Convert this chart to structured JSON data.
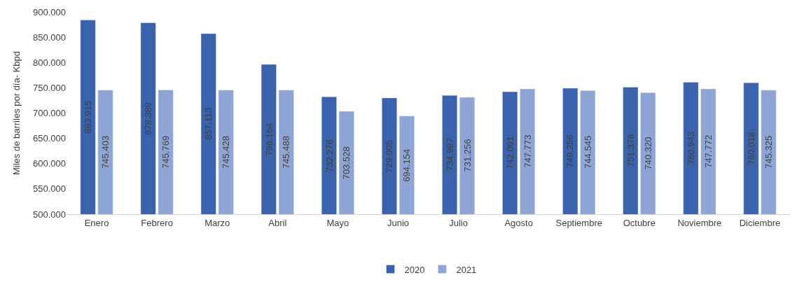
{
  "chart_data": {
    "type": "bar",
    "ylabel": "Miles de barriles por día- Kbpd",
    "categories": [
      "Enero",
      "Febrero",
      "Marzo",
      "Abril",
      "Mayo",
      "Junio",
      "Julio",
      "Agosto",
      "Septiembre",
      "Octubre",
      "Noviembre",
      "Diciembre"
    ],
    "series": [
      {
        "name": "2020",
        "color": "#3a62ad",
        "values": [
          883915,
          878389,
          857113,
          796164,
          732276,
          729905,
          734987,
          742091,
          749256,
          751376,
          760943,
          760018
        ],
        "value_labels": [
          "883.915",
          "878.389",
          "857.113",
          "796.164",
          "732.276",
          "729.905",
          "734.987",
          "742.091",
          "749.256",
          "751.376",
          "760.943",
          "760.018"
        ]
      },
      {
        "name": "2021",
        "color": "#8fa5d6",
        "values": [
          745403,
          745769,
          745428,
          745488,
          703528,
          694154,
          731256,
          747773,
          744545,
          740320,
          747772,
          745325
        ],
        "value_labels": [
          "745.403",
          "745.769",
          "745.428",
          "745.488",
          "703.528",
          "694.154",
          "731.256",
          "747.773",
          "744.545",
          "740.320",
          "747.772",
          "745.325"
        ]
      }
    ],
    "ylim": [
      500000,
      900000
    ],
    "yticks": [
      {
        "value": 500000,
        "label": "500.000"
      },
      {
        "value": 550000,
        "label": "550.000"
      },
      {
        "value": 600000,
        "label": "600.000"
      },
      {
        "value": 650000,
        "label": "650.000"
      },
      {
        "value": 700000,
        "label": "700.000"
      },
      {
        "value": 750000,
        "label": "750.000"
      },
      {
        "value": 800000,
        "label": "800.000"
      },
      {
        "value": 850000,
        "label": "850.000"
      },
      {
        "value": 900000,
        "label": "900.000"
      }
    ],
    "legend": "bottom"
  }
}
